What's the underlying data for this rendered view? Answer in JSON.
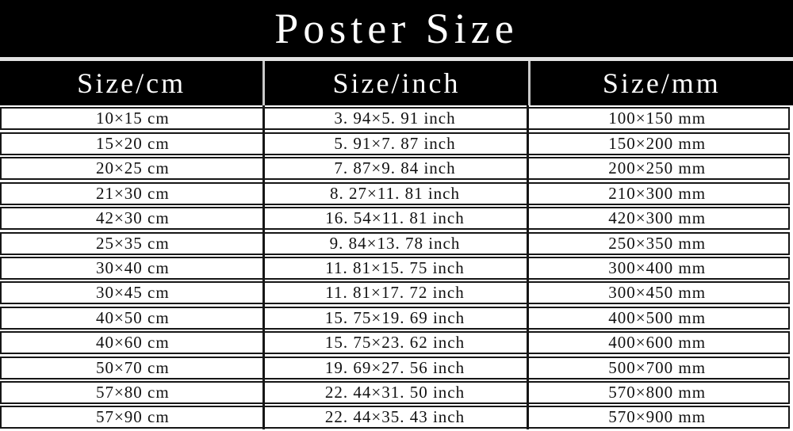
{
  "colors": {
    "background": "#ffffff",
    "block_black": "#000000",
    "border_dark": "#161616",
    "separator_light": "#e2e2e2",
    "header_divider": "#c9c9c9",
    "text_dark": "#111111",
    "text_light": "#ffffff"
  },
  "chart_data": {
    "type": "table",
    "title": "Poster Size",
    "columns": [
      "Size/cm",
      "Size/inch",
      "Size/mm"
    ],
    "rows": [
      {
        "display": [
          "10×15 cm",
          "3. 94×5. 91 inch",
          "100×150 mm"
        ],
        "cm": [
          10,
          15
        ],
        "inch": [
          3.94,
          5.91
        ],
        "mm": [
          100,
          150
        ]
      },
      {
        "display": [
          "15×20 cm",
          "5. 91×7. 87 inch",
          "150×200 mm"
        ],
        "cm": [
          15,
          20
        ],
        "inch": [
          5.91,
          7.87
        ],
        "mm": [
          150,
          200
        ]
      },
      {
        "display": [
          "20×25 cm",
          "7. 87×9. 84 inch",
          "200×250 mm"
        ],
        "cm": [
          20,
          25
        ],
        "inch": [
          7.87,
          9.84
        ],
        "mm": [
          200,
          250
        ]
      },
      {
        "display": [
          "21×30 cm",
          "8. 27×11. 81 inch",
          "210×300 mm"
        ],
        "cm": [
          21,
          30
        ],
        "inch": [
          8.27,
          11.81
        ],
        "mm": [
          210,
          300
        ]
      },
      {
        "display": [
          "42×30 cm",
          "16. 54×11. 81 inch",
          "420×300 mm"
        ],
        "cm": [
          42,
          30
        ],
        "inch": [
          16.54,
          11.81
        ],
        "mm": [
          420,
          300
        ]
      },
      {
        "display": [
          "25×35 cm",
          "9. 84×13. 78 inch",
          "250×350 mm"
        ],
        "cm": [
          25,
          35
        ],
        "inch": [
          9.84,
          13.78
        ],
        "mm": [
          250,
          350
        ]
      },
      {
        "display": [
          "30×40 cm",
          "11. 81×15. 75 inch",
          "300×400 mm"
        ],
        "cm": [
          30,
          40
        ],
        "inch": [
          11.81,
          15.75
        ],
        "mm": [
          300,
          400
        ]
      },
      {
        "display": [
          "30×45 cm",
          "11. 81×17. 72 inch",
          "300×450 mm"
        ],
        "cm": [
          30,
          45
        ],
        "inch": [
          11.81,
          17.72
        ],
        "mm": [
          300,
          450
        ]
      },
      {
        "display": [
          "40×50 cm",
          "15. 75×19. 69 inch",
          "400×500 mm"
        ],
        "cm": [
          40,
          50
        ],
        "inch": [
          15.75,
          19.69
        ],
        "mm": [
          400,
          500
        ]
      },
      {
        "display": [
          "40×60 cm",
          "15. 75×23. 62 inch",
          "400×600 mm"
        ],
        "cm": [
          40,
          60
        ],
        "inch": [
          15.75,
          23.62
        ],
        "mm": [
          400,
          600
        ]
      },
      {
        "display": [
          "50×70 cm",
          "19. 69×27. 56 inch",
          "500×700 mm"
        ],
        "cm": [
          50,
          70
        ],
        "inch": [
          19.69,
          27.56
        ],
        "mm": [
          500,
          700
        ]
      },
      {
        "display": [
          "57×80 cm",
          "22. 44×31. 50 inch",
          "570×800 mm"
        ],
        "cm": [
          57,
          80
        ],
        "inch": [
          22.44,
          31.5
        ],
        "mm": [
          570,
          800
        ]
      },
      {
        "display": [
          "57×90 cm",
          "22. 44×35. 43 inch",
          "570×900 mm"
        ],
        "cm": [
          57,
          90
        ],
        "inch": [
          22.44,
          35.43
        ],
        "mm": [
          570,
          900
        ]
      }
    ]
  }
}
